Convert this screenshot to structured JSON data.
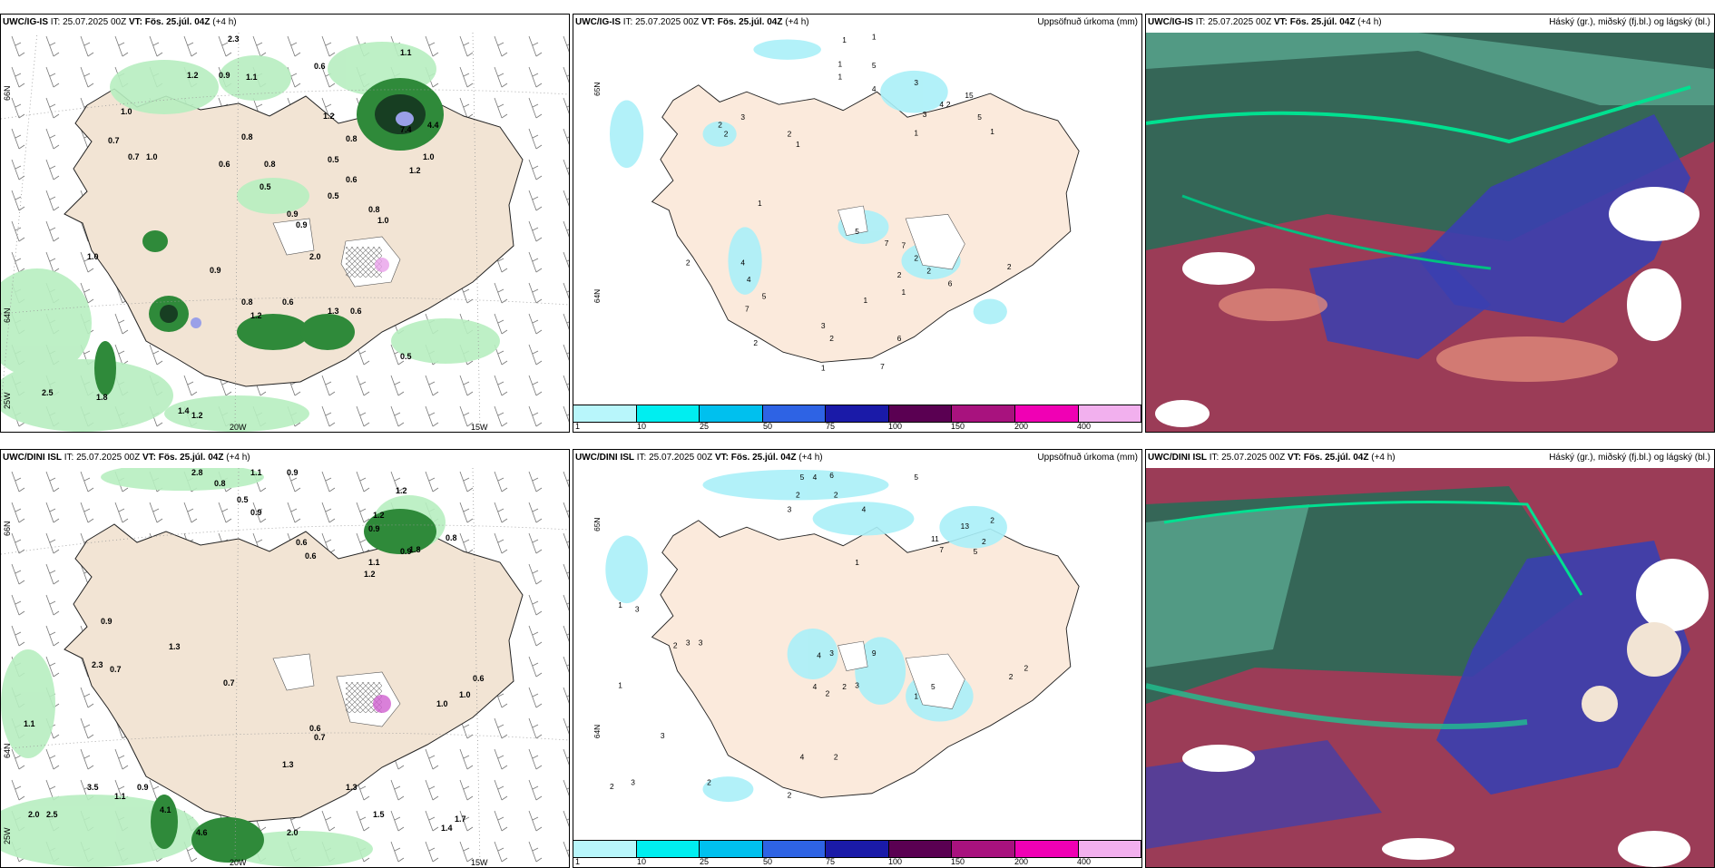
{
  "panels": {
    "p1": {
      "model": "UWC/IG-IS",
      "it": "IT: 25.07.2025 00Z",
      "vt_label": "VT:",
      "vt_value": "Fös. 25.júl. 04Z",
      "lead": "(+4 h)",
      "right": "",
      "lat1": "66N",
      "lat2": "64N",
      "lat3": "25W",
      "lon1": "20W",
      "lon2": "15W"
    },
    "p2": {
      "model": "UWC/IG-IS",
      "it": "IT: 25.07.2025 00Z",
      "vt_label": "VT:",
      "vt_value": "Fös. 25.júl. 04Z",
      "lead": "(+4 h)",
      "right": "Uppsöfnuð úrkoma (mm)",
      "lat1": "65N",
      "lat2": "64N"
    },
    "p3": {
      "model": "UWC/IG-IS",
      "it": "IT: 25.07.2025 00Z",
      "vt_label": "VT:",
      "vt_value": "Fös. 25.júl. 04Z",
      "lead": "(+4 h)",
      "right": "Háský (gr.), miðský (fj.bl.) og lágský (bl.)"
    },
    "p4": {
      "model": "UWC/DINI ISL",
      "it": "IT: 25.07.2025 00Z",
      "vt_label": "VT:",
      "vt_value": "Fös. 25.júl. 04Z",
      "lead": "(+4 h)",
      "right": "",
      "lat1": "66N",
      "lat2": "64N",
      "lat3": "25W",
      "lon1": "20W",
      "lon2": "15W"
    },
    "p5": {
      "model": "UWC/DINI ISL",
      "it": "IT: 25.07.2025 00Z",
      "vt_label": "VT:",
      "vt_value": "Fös. 25.júl. 04Z",
      "lead": "(+4 h)",
      "right": "Uppsöfnuð úrkoma (mm)",
      "lat1": "65N",
      "lat2": "64N"
    },
    "p6": {
      "model": "UWC/DINI ISL",
      "it": "IT: 25.07.2025 00Z",
      "vt_label": "VT:",
      "vt_value": "Fös. 25.júl. 04Z",
      "lead": "(+4 h)",
      "right": "Háský (gr.), miðský (fj.bl.) og lágský (bl.)"
    }
  },
  "legend": {
    "ticks": [
      "1",
      "10",
      "25",
      "50",
      "75",
      "100",
      "150",
      "200",
      "400"
    ],
    "colors": [
      "#b8f6fb",
      "#00eef0",
      "#00c0ee",
      "#2e63e4",
      "#1a1aa8",
      "#5a0052",
      "#a8127e",
      "#f000b4",
      "#f2b0ee"
    ]
  },
  "colors": {
    "land": "#f2e4d4",
    "land_precip": "#fbeadc",
    "precip_light": "#aaf0f8",
    "green_light": "#bdf2c2",
    "green_dark": "#1b6b30",
    "high_cloud": "#2a7a5a",
    "mid_cloud": "#3a3fb0",
    "low_cloud": "#8a1a3a"
  },
  "values": {
    "p1": [
      "1.1",
      "2.3",
      "0.6",
      "1.2",
      "0.9",
      "1.1",
      "1.0",
      "0.7",
      "0.7",
      "1.0",
      "0.6",
      "0.8",
      "0.8",
      "0.5",
      "0.9",
      "2.0",
      "1.2",
      "0.8",
      "7.4",
      "4.4",
      "1.0",
      "1.2",
      "0.5",
      "0.6",
      "0.9",
      "0.5",
      "0.8",
      "1.0",
      "0.9",
      "0.6",
      "0.8",
      "1.2",
      "0.6",
      "1.3",
      "0.5",
      "1.0",
      "2.5",
      "1.8",
      "1.4",
      "1.2"
    ],
    "p2": [
      "1",
      "1",
      "1",
      "5",
      "1",
      "3",
      "4",
      "2",
      "2",
      "3",
      "1",
      "2",
      "4",
      "3",
      "1",
      "2",
      "15",
      "5",
      "1",
      "1",
      "5",
      "7",
      "7",
      "2",
      "2",
      "2",
      "1",
      "6",
      "2",
      "4",
      "4",
      "5",
      "7",
      "1",
      "3",
      "2",
      "2",
      "2",
      "6",
      "1",
      "7"
    ],
    "p4": [
      "2.8",
      "0.8",
      "1.1",
      "0.9",
      "0.5",
      "0.9",
      "1.2",
      "0.6",
      "1.2",
      "0.9",
      "0.8",
      "1.3",
      "0.7",
      "2.3",
      "0.9",
      "0.7",
      "1.1",
      "0.9",
      "0.6",
      "0.6",
      "1.0",
      "1.0",
      "1.8",
      "1.1",
      "1.2",
      "1.3",
      "1.3",
      "0.7",
      "0.6",
      "2.0",
      "4.1",
      "1.1",
      "0.9",
      "3.5",
      "2.0",
      "2.5",
      "4.6",
      "1.5",
      "1.4",
      "1.7"
    ],
    "p5": [
      "5",
      "4",
      "6",
      "5",
      "2",
      "2",
      "3",
      "4",
      "13",
      "11",
      "7",
      "2",
      "2",
      "5",
      "1",
      "3",
      "3",
      "4",
      "3",
      "9",
      "4",
      "2",
      "2",
      "3",
      "5",
      "1",
      "2",
      "2",
      "1",
      "3",
      "2",
      "4",
      "2",
      "3",
      "1",
      "3",
      "2",
      "2",
      "2"
    ]
  }
}
